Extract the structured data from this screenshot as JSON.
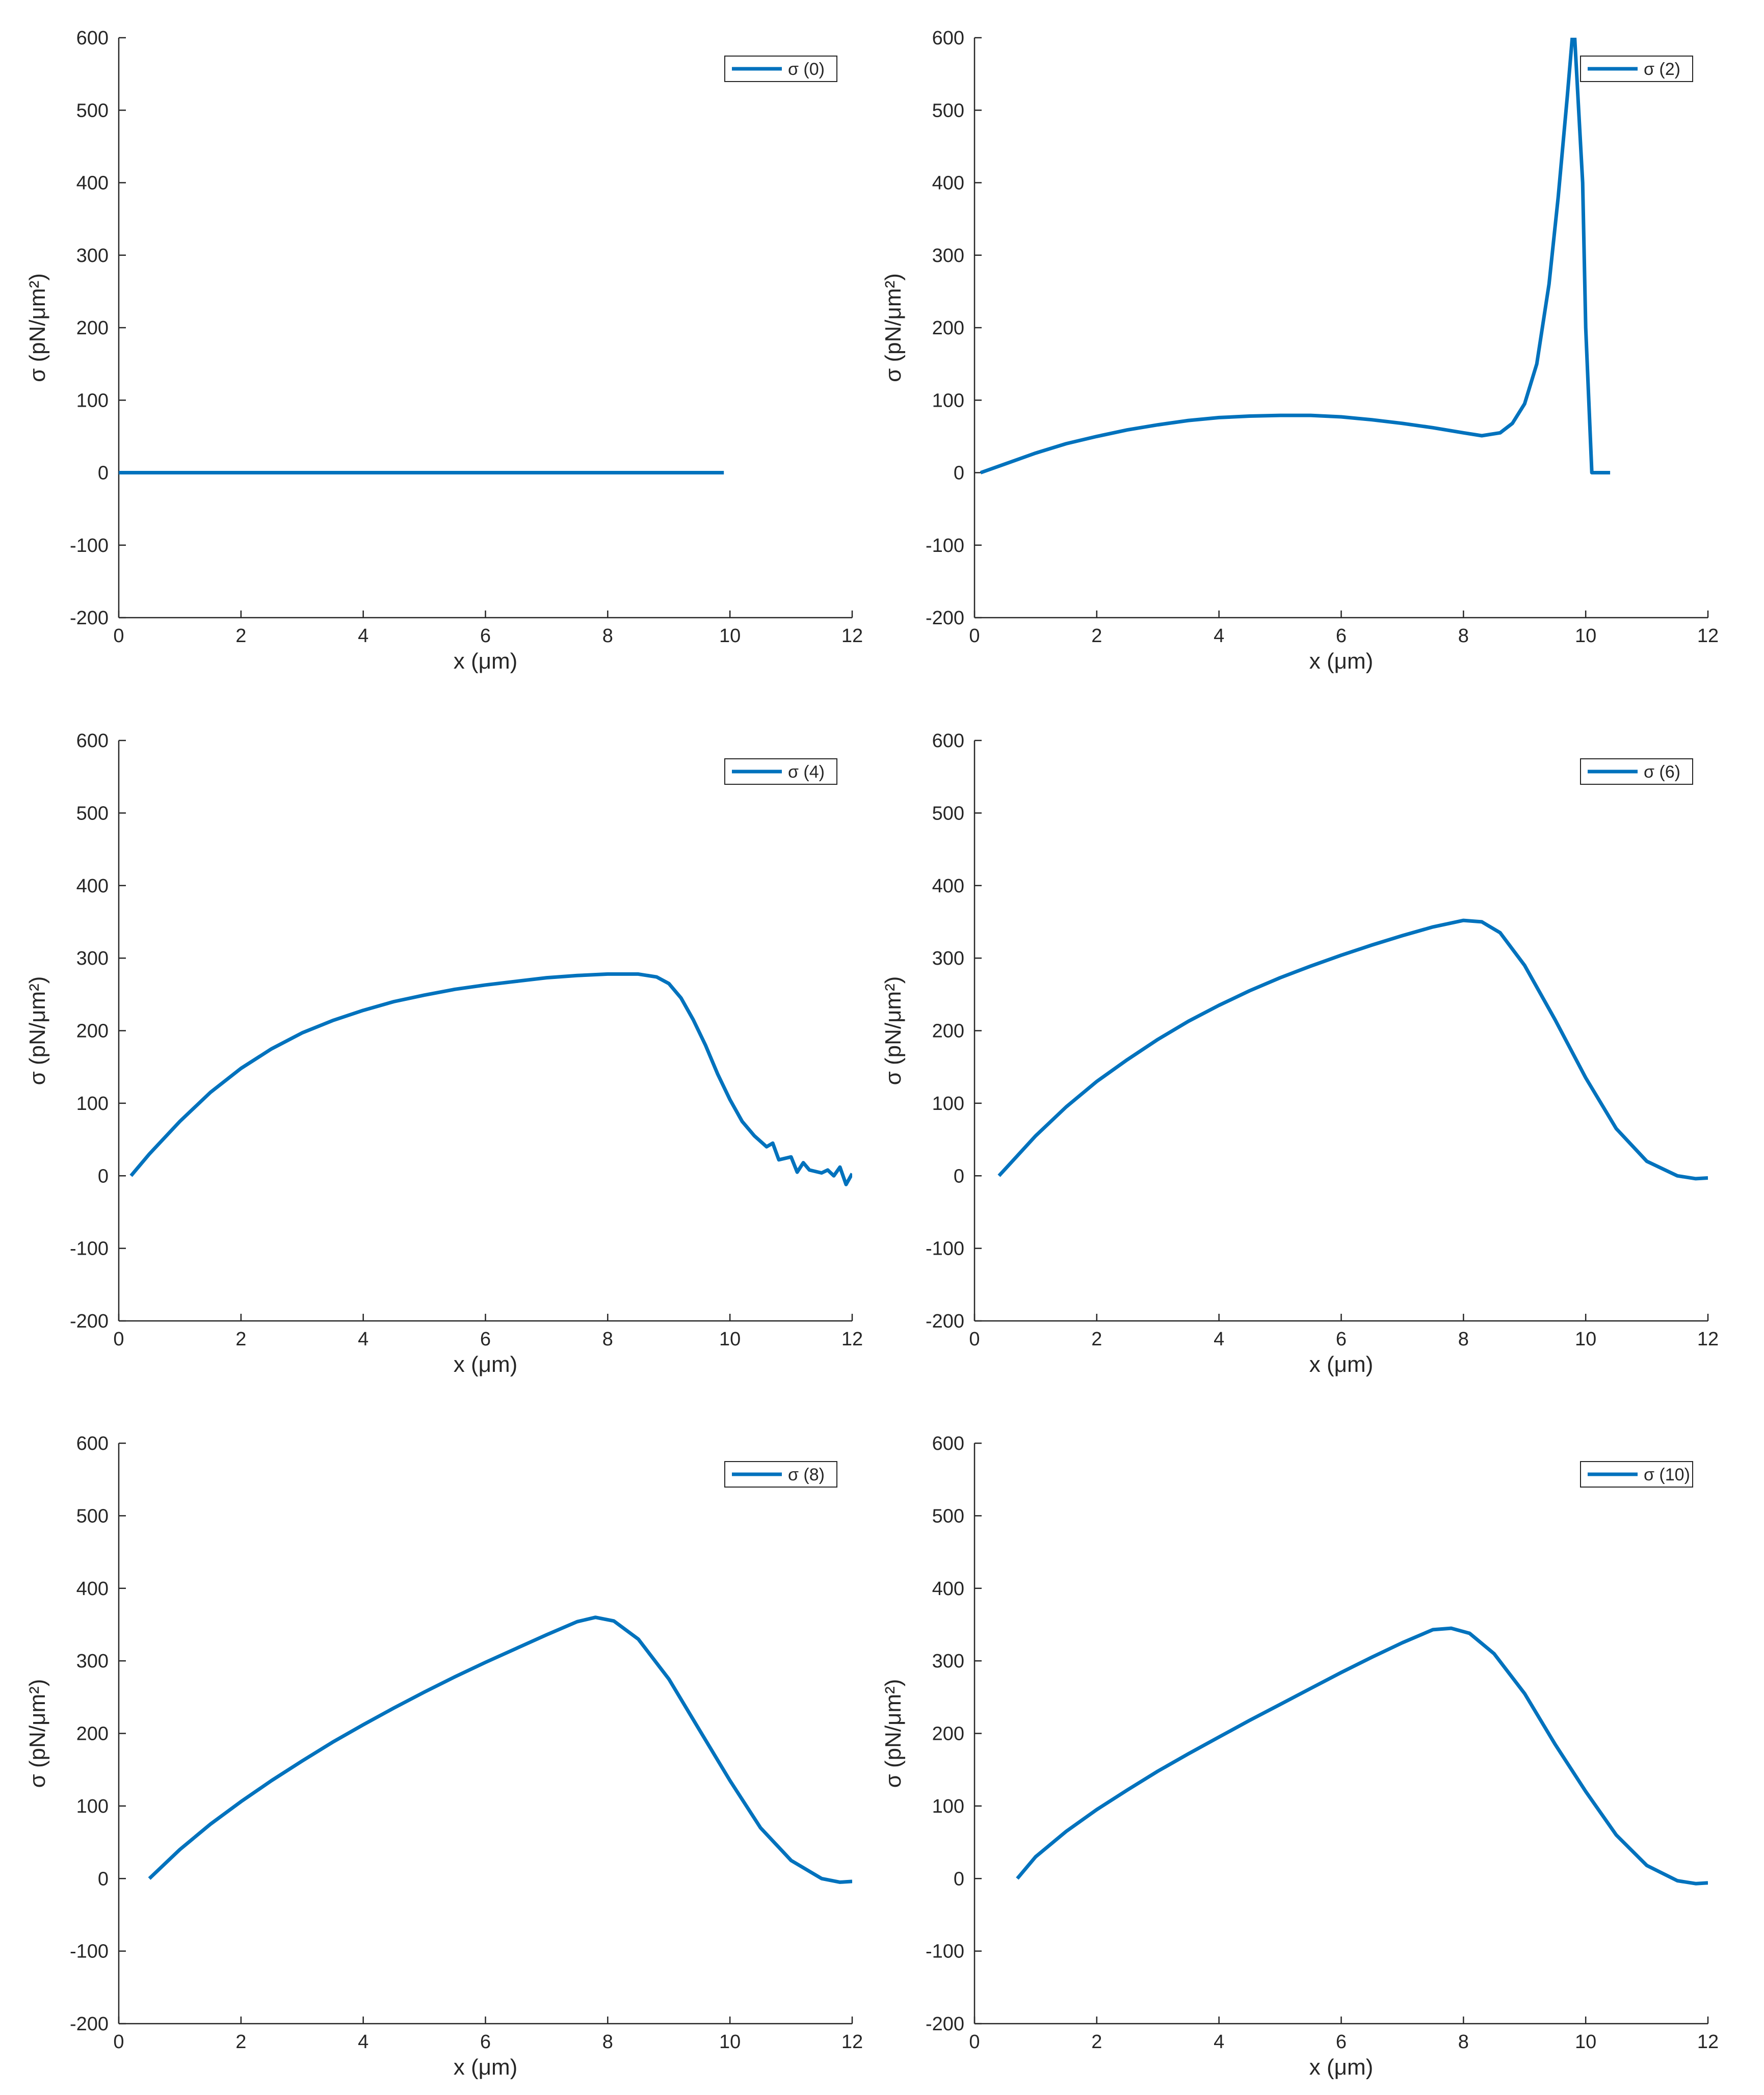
{
  "chart_data": [
    {
      "type": "line",
      "xlabel": "x (μm)",
      "ylabel": "σ (pN/μm²)",
      "xlim": [
        0,
        12
      ],
      "ylim": [
        -200,
        600
      ],
      "xticks": [
        "0",
        "2",
        "4",
        "6",
        "8",
        "10",
        "12"
      ],
      "yticks": [
        "-200",
        "-100",
        "0",
        "100",
        "200",
        "300",
        "400",
        "500",
        "600"
      ],
      "grid": false,
      "legend_position": "top-right",
      "series": [
        {
          "name": "σ (0)",
          "color": "#0072BD",
          "x": [
            0,
            2,
            4,
            6,
            8,
            9.9
          ],
          "y": [
            0,
            0,
            0,
            0,
            0,
            0
          ]
        }
      ]
    },
    {
      "type": "line",
      "xlabel": "x (μm)",
      "ylabel": "σ (pN/μm²)",
      "xlim": [
        0,
        12
      ],
      "ylim": [
        -200,
        600
      ],
      "xticks": [
        "0",
        "2",
        "4",
        "6",
        "8",
        "10",
        "12"
      ],
      "yticks": [
        "-200",
        "-100",
        "0",
        "100",
        "200",
        "300",
        "400",
        "500",
        "600"
      ],
      "grid": false,
      "legend_position": "top-right",
      "series": [
        {
          "name": "σ (2)",
          "color": "#0072BD",
          "x": [
            0.1,
            0.5,
            1,
            1.5,
            2,
            2.5,
            3,
            3.5,
            4,
            4.5,
            5,
            5.5,
            6,
            6.5,
            7,
            7.5,
            8,
            8.3,
            8.6,
            8.8,
            9,
            9.2,
            9.4,
            9.55,
            9.7,
            9.78,
            9.82,
            9.95,
            10.0,
            10.1,
            10.4
          ],
          "y": [
            0,
            12,
            27,
            40,
            50,
            59,
            66,
            72,
            76,
            78,
            79,
            79,
            77,
            73,
            68,
            62,
            55,
            51,
            55,
            68,
            95,
            150,
            260,
            380,
            520,
            600,
            600,
            400,
            200,
            0,
            0
          ]
        }
      ]
    },
    {
      "type": "line",
      "xlabel": "x (μm)",
      "ylabel": "σ (pN/μm²)",
      "xlim": [
        0,
        12
      ],
      "ylim": [
        -200,
        600
      ],
      "xticks": [
        "0",
        "2",
        "4",
        "6",
        "8",
        "10",
        "12"
      ],
      "yticks": [
        "-200",
        "-100",
        "0",
        "100",
        "200",
        "300",
        "400",
        "500",
        "600"
      ],
      "grid": false,
      "legend_position": "top-right",
      "series": [
        {
          "name": "σ (4)",
          "color": "#0072BD",
          "x": [
            0.2,
            0.5,
            1,
            1.5,
            2,
            2.5,
            3,
            3.5,
            4,
            4.5,
            5,
            5.5,
            6,
            6.5,
            7,
            7.5,
            8,
            8.5,
            8.8,
            9,
            9.2,
            9.4,
            9.6,
            9.8,
            10,
            10.2,
            10.4,
            10.6,
            10.7,
            10.8,
            11,
            11.1,
            11.2,
            11.3,
            11.5,
            11.6,
            11.7,
            11.8,
            11.9,
            12
          ],
          "y": [
            0,
            30,
            75,
            115,
            148,
            175,
            197,
            214,
            228,
            240,
            249,
            257,
            263,
            268,
            273,
            276,
            278,
            278,
            274,
            265,
            245,
            215,
            180,
            140,
            105,
            75,
            55,
            40,
            45,
            22,
            26,
            5,
            18,
            8,
            4,
            8,
            0,
            12,
            -12,
            3
          ]
        }
      ]
    },
    {
      "type": "line",
      "xlabel": "x (μm)",
      "ylabel": "σ (pN/μm²)",
      "xlim": [
        0,
        12
      ],
      "ylim": [
        -200,
        600
      ],
      "xticks": [
        "0",
        "2",
        "4",
        "6",
        "8",
        "10",
        "12"
      ],
      "yticks": [
        "-200",
        "-100",
        "0",
        "100",
        "200",
        "300",
        "400",
        "500",
        "600"
      ],
      "grid": false,
      "legend_position": "top-right",
      "series": [
        {
          "name": "σ (6)",
          "color": "#0072BD",
          "x": [
            0.4,
            1,
            1.5,
            2,
            2.5,
            3,
            3.5,
            4,
            4.5,
            5,
            5.5,
            6,
            6.5,
            7,
            7.5,
            8,
            8.3,
            8.6,
            9,
            9.5,
            10,
            10.5,
            11,
            11.5,
            11.8,
            12
          ],
          "y": [
            0,
            55,
            95,
            130,
            160,
            188,
            213,
            235,
            255,
            273,
            289,
            304,
            318,
            331,
            343,
            352,
            350,
            335,
            290,
            215,
            135,
            65,
            20,
            0,
            -4,
            -3
          ]
        }
      ]
    },
    {
      "type": "line",
      "xlabel": "x (μm)",
      "ylabel": "σ (pN/μm²)",
      "xlim": [
        0,
        12
      ],
      "ylim": [
        -200,
        600
      ],
      "xticks": [
        "0",
        "2",
        "4",
        "6",
        "8",
        "10",
        "12"
      ],
      "yticks": [
        "-200",
        "-100",
        "0",
        "100",
        "200",
        "300",
        "400",
        "500",
        "600"
      ],
      "grid": false,
      "legend_position": "top-right",
      "series": [
        {
          "name": "σ (8)",
          "color": "#0072BD",
          "x": [
            0.5,
            1,
            1.5,
            2,
            2.5,
            3,
            3.5,
            4,
            4.5,
            5,
            5.5,
            6,
            6.5,
            7,
            7.5,
            7.8,
            8.1,
            8.5,
            9,
            9.5,
            10,
            10.5,
            11,
            11.5,
            11.8,
            12
          ],
          "y": [
            0,
            40,
            75,
            106,
            135,
            162,
            188,
            212,
            235,
            257,
            278,
            298,
            317,
            336,
            354,
            360,
            355,
            330,
            275,
            205,
            135,
            70,
            25,
            0,
            -5,
            -4
          ]
        }
      ]
    },
    {
      "type": "line",
      "xlabel": "x (μm)",
      "ylabel": "σ (pN/μm²)",
      "xlim": [
        0,
        12
      ],
      "ylim": [
        -200,
        600
      ],
      "xticks": [
        "0",
        "2",
        "4",
        "6",
        "8",
        "10",
        "12"
      ],
      "yticks": [
        "-200",
        "-100",
        "0",
        "100",
        "200",
        "300",
        "400",
        "500",
        "600"
      ],
      "grid": false,
      "legend_position": "top-right",
      "series": [
        {
          "name": "σ (10)",
          "color": "#0072BD",
          "x": [
            0.7,
            1,
            1.5,
            2,
            2.5,
            3,
            3.5,
            4,
            4.5,
            5,
            5.5,
            6,
            6.5,
            7,
            7.5,
            7.8,
            8.1,
            8.5,
            9,
            9.5,
            10,
            10.5,
            11,
            11.5,
            11.8,
            12
          ],
          "y": [
            0,
            30,
            65,
            95,
            122,
            148,
            172,
            195,
            218,
            240,
            262,
            284,
            305,
            325,
            343,
            345,
            338,
            310,
            255,
            185,
            120,
            60,
            18,
            -3,
            -7,
            -6
          ]
        }
      ]
    }
  ]
}
